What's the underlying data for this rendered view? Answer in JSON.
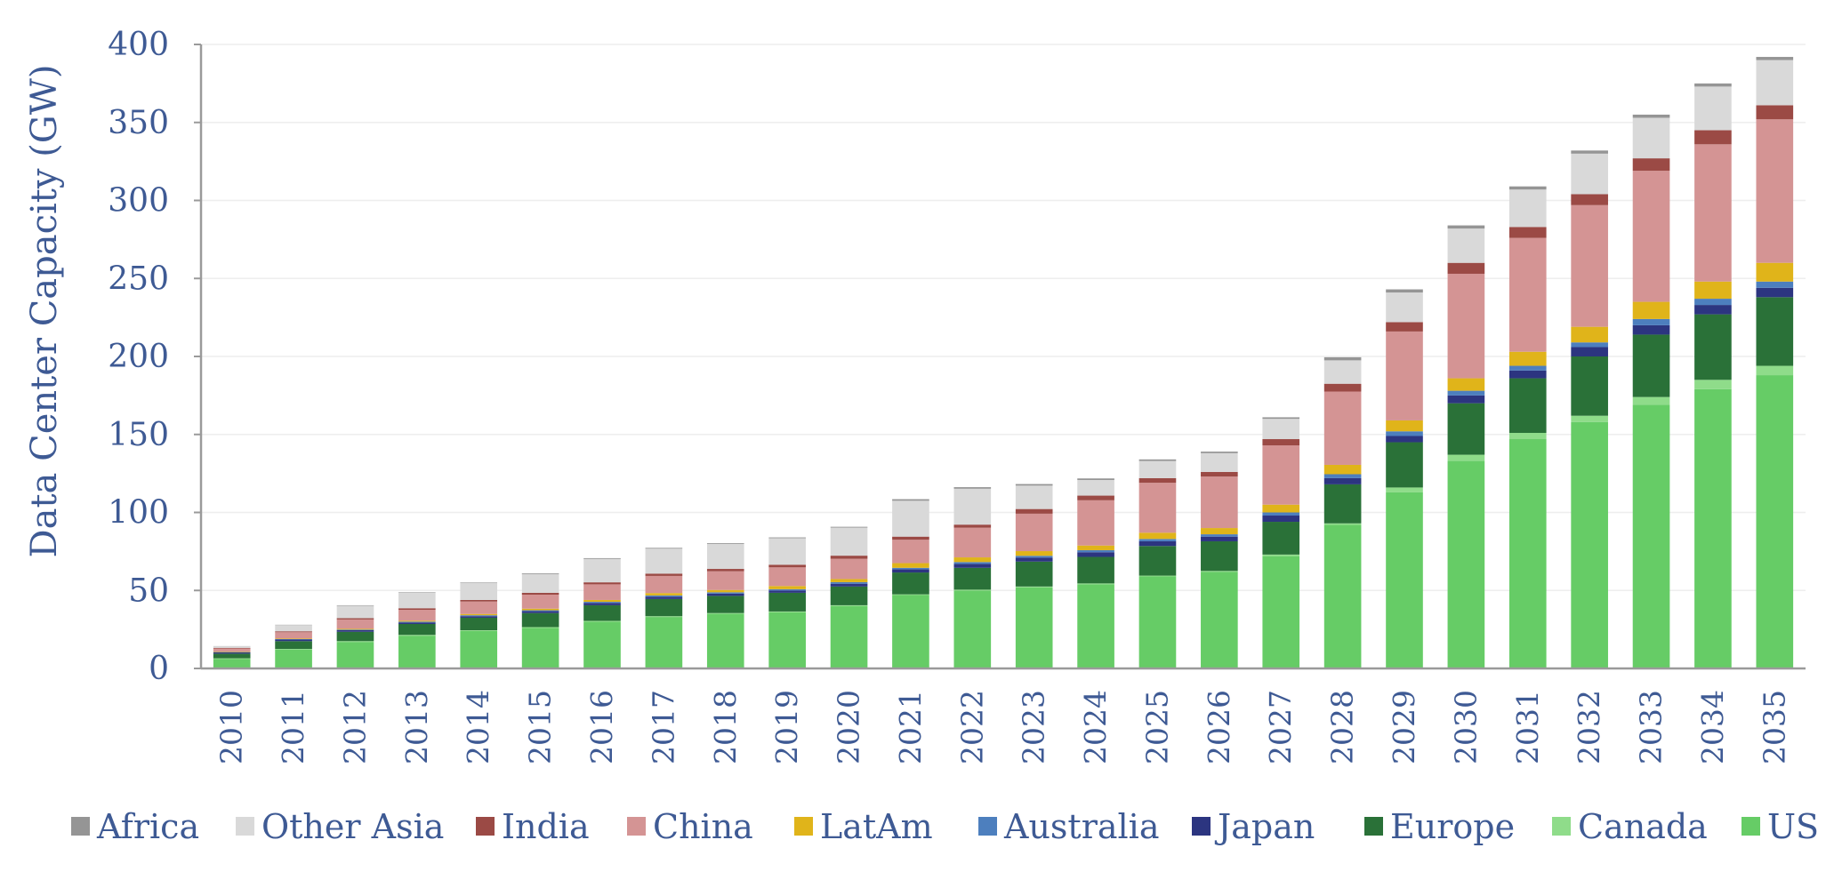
{
  "chart_data": {
    "type": "bar",
    "stacked": true,
    "ylabel": "Data Center Capacity (GW)",
    "xlabel": "",
    "ylim": [
      0,
      400
    ],
    "yticks": [
      0,
      50,
      100,
      150,
      200,
      250,
      300,
      350,
      400
    ],
    "grid": true,
    "legend_position": "bottom",
    "categories": [
      "2010",
      "2011",
      "2012",
      "2013",
      "2014",
      "2015",
      "2016",
      "2017",
      "2018",
      "2019",
      "2020",
      "2021",
      "2022",
      "2023",
      "2024",
      "2025",
      "2026",
      "2027",
      "2028",
      "2029",
      "2030",
      "2031",
      "2032",
      "2033",
      "2034",
      "2035"
    ],
    "series": [
      {
        "name": "US",
        "color": "#66cc66",
        "values": [
          6,
          12,
          17,
          21,
          24,
          26,
          30,
          33,
          35,
          36,
          40,
          47,
          50,
          52,
          54,
          59,
          62,
          72,
          92,
          113,
          133,
          147,
          158,
          169,
          179,
          188
        ]
      },
      {
        "name": "Canada",
        "color": "#8fdc8a",
        "values": [
          0.5,
          0.5,
          0.5,
          0.5,
          0.5,
          0.5,
          0.5,
          0.5,
          0.5,
          0.5,
          0.5,
          0.5,
          0.5,
          0.5,
          0.5,
          0.5,
          0.5,
          1,
          1,
          3,
          4,
          4,
          4,
          5,
          6,
          6
        ]
      },
      {
        "name": "Europe",
        "color": "#2a7138",
        "values": [
          3,
          5,
          6,
          7,
          8,
          9,
          10,
          11,
          11,
          12,
          12,
          14,
          14,
          16,
          17,
          19,
          19,
          21,
          25,
          29,
          33,
          35,
          38,
          40,
          42,
          44
        ]
      },
      {
        "name": "Japan",
        "color": "#2c3580",
        "values": [
          0.8,
          1,
          1,
          1,
          1,
          1.2,
          1.5,
          1.5,
          1.5,
          1.5,
          1.8,
          2,
          2.5,
          2.5,
          3,
          3,
          3,
          4,
          4,
          4,
          5,
          5,
          6,
          6,
          6,
          6
        ]
      },
      {
        "name": "Australia",
        "color": "#4d7fbe",
        "values": [
          0.2,
          0.3,
          0.4,
          0.5,
          0.6,
          0.6,
          0.7,
          0.8,
          0.8,
          0.8,
          1,
          1,
          1.2,
          1.2,
          1.3,
          1.5,
          1.5,
          2,
          2.5,
          3,
          3,
          3,
          3,
          4,
          4,
          4
        ]
      },
      {
        "name": "LatAm",
        "color": "#e0b41a",
        "values": [
          0.3,
          0.4,
          0.5,
          0.6,
          0.8,
          1,
          1.2,
          1.5,
          1.5,
          2,
          2,
          3,
          3,
          3,
          3,
          4,
          4,
          5,
          6,
          7,
          8,
          9,
          10,
          11,
          11,
          12
        ]
      },
      {
        "name": "China",
        "color": "#d49494",
        "values": [
          2,
          4,
          6,
          7,
          8,
          9,
          10,
          11,
          12,
          12,
          13,
          15,
          19,
          24,
          29,
          32,
          33,
          38,
          47,
          57,
          67,
          73,
          78,
          84,
          88,
          92
        ]
      },
      {
        "name": "India",
        "color": "#9b4a45",
        "values": [
          0.4,
          0.6,
          0.8,
          1,
          1,
          1.2,
          1.3,
          1.5,
          1.5,
          1.7,
          2,
          2,
          2,
          3,
          3,
          3,
          3,
          4,
          5,
          6,
          7,
          7,
          7,
          8,
          9,
          9
        ]
      },
      {
        "name": "Other Asia",
        "color": "#d9d9d9",
        "values": [
          1,
          4,
          8,
          10,
          11,
          12,
          15,
          16,
          16,
          17,
          18,
          23,
          23,
          15,
          10,
          11,
          12,
          13,
          15,
          19,
          22,
          24,
          26,
          26,
          28,
          29
        ]
      },
      {
        "name": "Africa",
        "color": "#959595",
        "values": [
          0.1,
          0.2,
          0.3,
          0.3,
          0.3,
          0.5,
          0.5,
          0.5,
          0.5,
          0.5,
          0.5,
          1,
          1,
          1,
          1,
          1,
          1,
          1,
          2,
          2,
          2,
          2,
          2,
          2,
          2,
          2
        ]
      }
    ],
    "legend_order": [
      "Africa",
      "Other Asia",
      "India",
      "China",
      "LatAm",
      "Australia",
      "Japan",
      "Europe",
      "Canada",
      "US"
    ]
  }
}
